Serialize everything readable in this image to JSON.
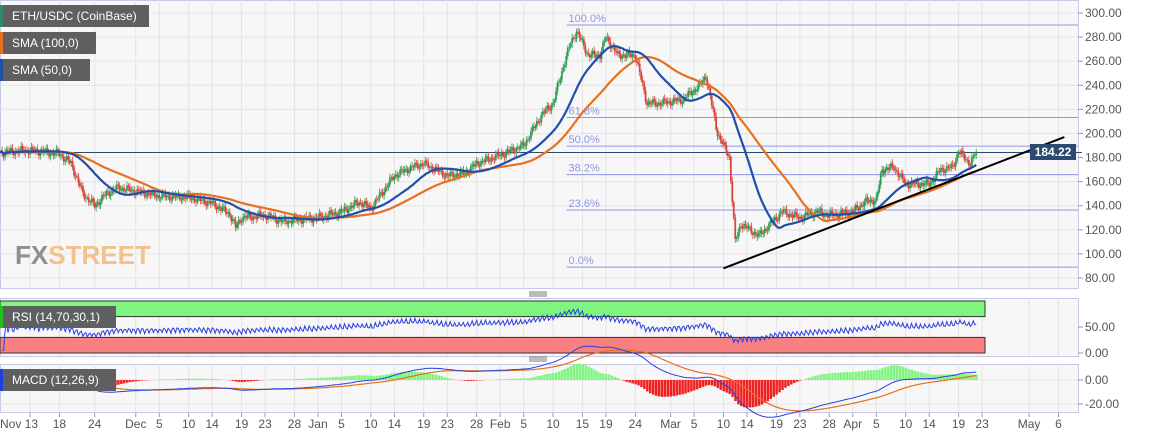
{
  "legend": {
    "pair": "ETH/USDC (CoinBase)",
    "sma100": "SMA (100,0)",
    "sma50": "SMA (50,0)",
    "rsi": "RSI (14,70,30,1)",
    "macd": "MACD (12,26,9)"
  },
  "logo": {
    "part1": "FX",
    "part2": "STREET"
  },
  "last_price": "184.22",
  "colors": {
    "up": "#2f9e55",
    "down": "#d9453b",
    "sma100": "#e8701f",
    "sma50": "#1f4fa8",
    "fib": "#8f95e8",
    "trendline": "#000000",
    "rsi": "#2740e0",
    "macd_line": "#2740e0",
    "signal_line": "#e8701f",
    "overbought_zone": "#7ef57e",
    "oversold_zone": "#f98080",
    "price_box": "#2b4a6f"
  },
  "chart_data": {
    "type": "candlestick",
    "ylim": [
      75,
      305
    ],
    "yticks": [
      "300.00",
      "280.00",
      "260.00",
      "240.00",
      "220.00",
      "200.00",
      "180.00",
      "160.00",
      "140.00",
      "120.00",
      "100.00",
      "80.00"
    ],
    "rsi_ticks": [
      "50.00",
      "0.00"
    ],
    "macd_ticks": [
      "0.00",
      "-20.00"
    ],
    "xticks": [
      [
        "2019-11-13",
        "Nov 13"
      ],
      [
        "2019-11-18",
        "18"
      ],
      [
        "2019-11-24",
        "24"
      ],
      [
        "2019-12-01",
        "Dec"
      ],
      [
        "2019-12-05",
        "5"
      ],
      [
        "2019-12-10",
        "10"
      ],
      [
        "2019-12-14",
        "14"
      ],
      [
        "2019-12-19",
        "19"
      ],
      [
        "2019-12-23",
        "23"
      ],
      [
        "2019-12-28",
        "28"
      ],
      [
        "2020-01-01",
        "Jan"
      ],
      [
        "2020-01-05",
        "5"
      ],
      [
        "2020-01-10",
        "10"
      ],
      [
        "2020-01-14",
        "14"
      ],
      [
        "2020-01-19",
        "19"
      ],
      [
        "2020-01-23",
        "23"
      ],
      [
        "2020-01-28",
        "28"
      ],
      [
        "2020-02-01",
        "Feb"
      ],
      [
        "2020-02-05",
        "5"
      ],
      [
        "2020-02-10",
        "10"
      ],
      [
        "2020-02-15",
        "15"
      ],
      [
        "2020-02-19",
        "19"
      ],
      [
        "2020-02-24",
        "24"
      ],
      [
        "2020-03-01",
        "Mar"
      ],
      [
        "2020-03-05",
        "5"
      ],
      [
        "2020-03-10",
        "10"
      ],
      [
        "2020-03-14",
        "14"
      ],
      [
        "2020-03-19",
        "19"
      ],
      [
        "2020-03-23",
        "23"
      ],
      [
        "2020-03-28",
        "28"
      ],
      [
        "2020-04-01",
        "Apr"
      ],
      [
        "2020-04-05",
        "5"
      ],
      [
        "2020-04-10",
        "10"
      ],
      [
        "2020-04-14",
        "14"
      ],
      [
        "2020-04-19",
        "19"
      ],
      [
        "2020-04-23",
        "23"
      ],
      [
        "2020-05-01",
        "May"
      ],
      [
        "2020-05-06",
        "6"
      ]
    ],
    "closes": [
      [
        "2019-11-08",
        184
      ],
      [
        "2019-11-12",
        186
      ],
      [
        "2019-11-15",
        185
      ],
      [
        "2019-11-18",
        183
      ],
      [
        "2019-11-20",
        175
      ],
      [
        "2019-11-22",
        150
      ],
      [
        "2019-11-24",
        140
      ],
      [
        "2019-11-26",
        150
      ],
      [
        "2019-11-28",
        155
      ],
      [
        "2019-12-01",
        152
      ],
      [
        "2019-12-05",
        148
      ],
      [
        "2019-12-10",
        147
      ],
      [
        "2019-12-14",
        142
      ],
      [
        "2019-12-17",
        133
      ],
      [
        "2019-12-18",
        122
      ],
      [
        "2019-12-19",
        130
      ],
      [
        "2019-12-23",
        132
      ],
      [
        "2019-12-26",
        127
      ],
      [
        "2019-12-28",
        128
      ],
      [
        "2020-01-01",
        130
      ],
      [
        "2020-01-05",
        135
      ],
      [
        "2020-01-08",
        143
      ],
      [
        "2020-01-10",
        138
      ],
      [
        "2020-01-14",
        165
      ],
      [
        "2020-01-17",
        172
      ],
      [
        "2020-01-19",
        175
      ],
      [
        "2020-01-23",
        165
      ],
      [
        "2020-01-26",
        167
      ],
      [
        "2020-01-28",
        175
      ],
      [
        "2020-02-01",
        182
      ],
      [
        "2020-02-05",
        190
      ],
      [
        "2020-02-08",
        215
      ],
      [
        "2020-02-10",
        225
      ],
      [
        "2020-02-12",
        260
      ],
      [
        "2020-02-13",
        275
      ],
      [
        "2020-02-14",
        285
      ],
      [
        "2020-02-16",
        265
      ],
      [
        "2020-02-18",
        265
      ],
      [
        "2020-02-19",
        280
      ],
      [
        "2020-02-21",
        265
      ],
      [
        "2020-02-24",
        265
      ],
      [
        "2020-02-26",
        225
      ],
      [
        "2020-02-28",
        225
      ],
      [
        "2020-03-03",
        228
      ],
      [
        "2020-03-06",
        240
      ],
      [
        "2020-03-07",
        248
      ],
      [
        "2020-03-09",
        200
      ],
      [
        "2020-03-11",
        180
      ],
      [
        "2020-03-12",
        110
      ],
      [
        "2020-03-13",
        125
      ],
      [
        "2020-03-16",
        115
      ],
      [
        "2020-03-19",
        130
      ],
      [
        "2020-03-20",
        135
      ],
      [
        "2020-03-23",
        130
      ],
      [
        "2020-03-26",
        135
      ],
      [
        "2020-03-28",
        132
      ],
      [
        "2020-04-01",
        135
      ],
      [
        "2020-04-03",
        143
      ],
      [
        "2020-04-05",
        145
      ],
      [
        "2020-04-06",
        170
      ],
      [
        "2020-04-08",
        172
      ],
      [
        "2020-04-10",
        158
      ],
      [
        "2020-04-14",
        158
      ],
      [
        "2020-04-16",
        170
      ],
      [
        "2020-04-18",
        172
      ],
      [
        "2020-04-19",
        185
      ],
      [
        "2020-04-21",
        175
      ],
      [
        "2020-04-22",
        184.22
      ]
    ],
    "fibonacci": {
      "low": 89,
      "high": 290,
      "levels": [
        {
          "ratio": 1,
          "label": "100.0%"
        },
        {
          "ratio": 0.618,
          "label": "61.8%"
        },
        {
          "ratio": 0.5,
          "label": "50.0%"
        },
        {
          "ratio": 0.382,
          "label": "38.2%"
        },
        {
          "ratio": 0.236,
          "label": "23.6%"
        },
        {
          "ratio": 0,
          "label": "0.0%"
        }
      ]
    },
    "trendline": [
      [
        "2020-03-10",
        88
      ],
      [
        "2020-05-07",
        197
      ]
    ],
    "horizontal_line": 184.22,
    "rsi_zones": {
      "overbought": 70,
      "oversold": 30
    }
  }
}
